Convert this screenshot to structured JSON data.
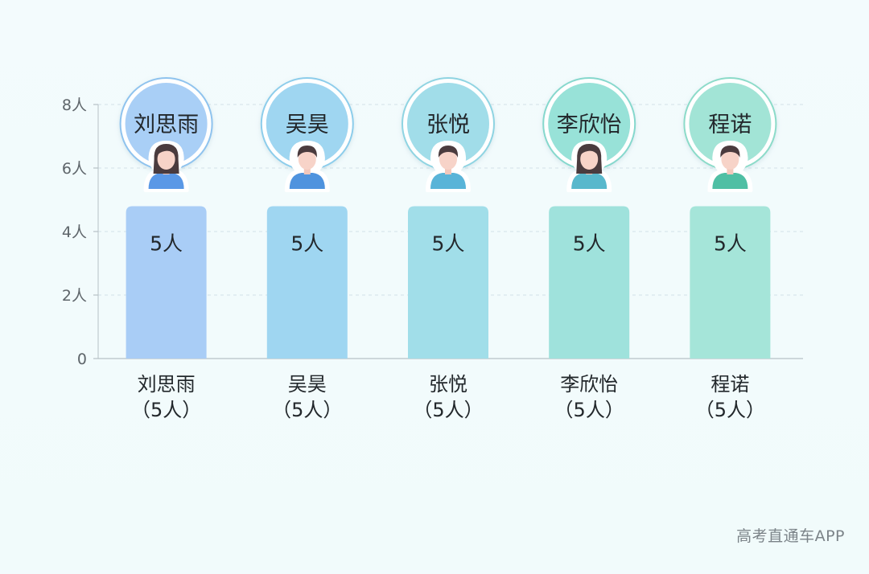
{
  "chart_data": {
    "type": "bar",
    "categories": [
      "刘思雨",
      "吴昊",
      "张悦",
      "李欣怡",
      "程诺"
    ],
    "values": [
      5,
      5,
      5,
      5,
      5
    ],
    "value_labels": [
      "5人",
      "5人",
      "5人",
      "5人",
      "5人"
    ],
    "x_tick_labels": [
      [
        "刘思雨",
        "（5人）"
      ],
      [
        "吴昊",
        "（5人）"
      ],
      [
        "张悦",
        "（5人）"
      ],
      [
        "李欣怡",
        "（5人）"
      ],
      [
        "程诺",
        "（5人）"
      ]
    ],
    "y_ticks": [
      0,
      2,
      4,
      6,
      8
    ],
    "y_tick_labels": [
      "0",
      "2人",
      "4人",
      "6人",
      "8人"
    ],
    "ylim": [
      0,
      8
    ],
    "grid": true,
    "legend": "none",
    "avatars": [
      "female-avatar-icon",
      "male-avatar-icon",
      "male-avatar-icon",
      "female-avatar-icon",
      "male-avatar-icon"
    ],
    "colors": {
      "bars": [
        "#a9cdf6",
        "#9fd6f1",
        "#a1dee9",
        "#9fe2dc",
        "#a5e5d9"
      ],
      "badge_inner": [
        "#a9cff6",
        "#9fd6f1",
        "#a1dde9",
        "#98e2d8",
        "#a2e4d6"
      ],
      "badge_ring": [
        "#8fc3ee",
        "#8dcdeb",
        "#8fd4e2",
        "#86d8cd",
        "#8cdbc9"
      ],
      "shirts": [
        "#5a98e6",
        "#4f93de",
        "#59b4d8",
        "#58b8cc",
        "#4fbfa4"
      ],
      "text": "#22272b",
      "axis": "#5e656a"
    }
  },
  "watermark": "高考直通车APP"
}
